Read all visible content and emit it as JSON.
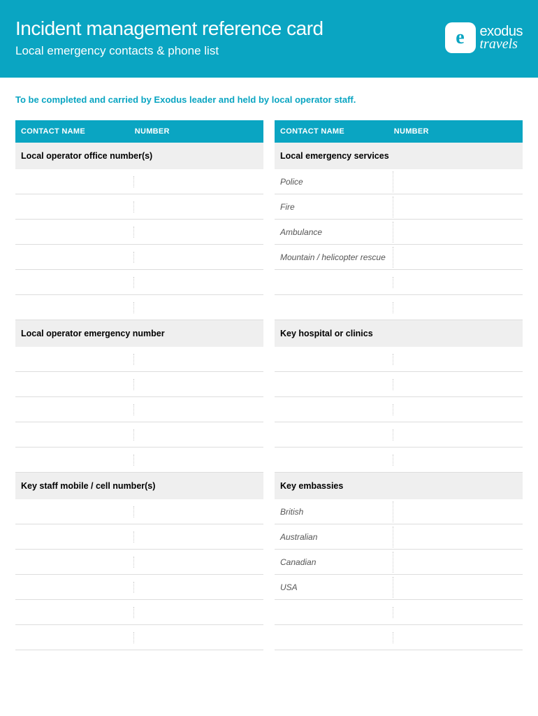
{
  "header": {
    "title": "Incident management reference card",
    "subtitle": "Local emergency contacts & phone list",
    "logo_text_1": "exodus",
    "logo_text_2": "travels"
  },
  "instruction": "To be completed and carried by Exodus leader and held by local operator staff.",
  "table_headers": {
    "name": "CONTACT NAME",
    "number": "NUMBER"
  },
  "left_column": {
    "sections": [
      {
        "title": "Local operator office number(s)",
        "rows": [
          {
            "name": "",
            "number": ""
          },
          {
            "name": "",
            "number": ""
          },
          {
            "name": "",
            "number": ""
          },
          {
            "name": "",
            "number": ""
          },
          {
            "name": "",
            "number": ""
          },
          {
            "name": "",
            "number": ""
          }
        ]
      },
      {
        "title": "Local operator emergency number",
        "rows": [
          {
            "name": "",
            "number": ""
          },
          {
            "name": "",
            "number": ""
          },
          {
            "name": "",
            "number": ""
          },
          {
            "name": "",
            "number": ""
          },
          {
            "name": "",
            "number": ""
          }
        ]
      },
      {
        "title": "Key staff mobile / cell number(s)",
        "rows": [
          {
            "name": "",
            "number": ""
          },
          {
            "name": "",
            "number": ""
          },
          {
            "name": "",
            "number": ""
          },
          {
            "name": "",
            "number": ""
          },
          {
            "name": "",
            "number": ""
          },
          {
            "name": "",
            "number": ""
          }
        ]
      }
    ]
  },
  "right_column": {
    "sections": [
      {
        "title": "Local emergency services",
        "rows": [
          {
            "name": "Police",
            "number": ""
          },
          {
            "name": "Fire",
            "number": ""
          },
          {
            "name": "Ambulance",
            "number": ""
          },
          {
            "name": "Mountain / helicopter rescue",
            "number": ""
          },
          {
            "name": "",
            "number": ""
          },
          {
            "name": "",
            "number": ""
          }
        ]
      },
      {
        "title": "Key hospital or clinics",
        "rows": [
          {
            "name": "",
            "number": ""
          },
          {
            "name": "",
            "number": ""
          },
          {
            "name": "",
            "number": ""
          },
          {
            "name": "",
            "number": ""
          },
          {
            "name": "",
            "number": ""
          }
        ]
      },
      {
        "title": "Key embassies",
        "rows": [
          {
            "name": "British",
            "number": ""
          },
          {
            "name": "Australian",
            "number": ""
          },
          {
            "name": "Canadian",
            "number": ""
          },
          {
            "name": "USA",
            "number": ""
          },
          {
            "name": "",
            "number": ""
          },
          {
            "name": "",
            "number": ""
          }
        ]
      }
    ]
  },
  "colors": {
    "primary": "#0aa5c2",
    "section_bg": "#efefef",
    "border": "#dddddd"
  }
}
